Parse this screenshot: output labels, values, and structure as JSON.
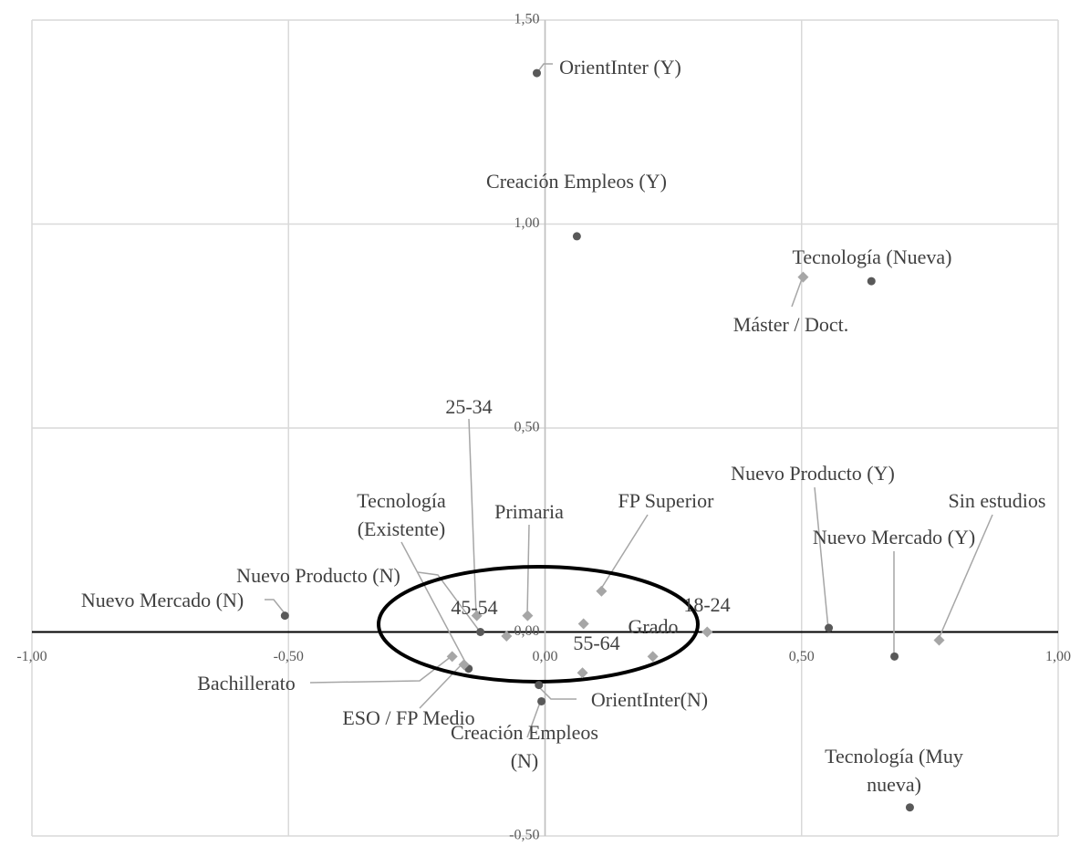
{
  "chart_data": {
    "type": "scatter",
    "xlim": [
      -1,
      1
    ],
    "xticks": [
      {
        "value": -1,
        "label": "-1,00"
      },
      {
        "value": -0.5,
        "label": "-0,50"
      },
      {
        "value": 0,
        "label": "0,00"
      },
      {
        "value": 0.5,
        "label": "0,50"
      },
      {
        "value": 1,
        "label": "1,00"
      }
    ],
    "ylim": [
      -0.5,
      1.5
    ],
    "yticks": [
      {
        "value": -0.5,
        "label": "-0,50"
      },
      {
        "value": 0,
        "label": "0,00"
      },
      {
        "value": 0.5,
        "label": "0,50"
      },
      {
        "value": 1,
        "label": "1,00"
      },
      {
        "value": 1.5,
        "label": "1,50"
      }
    ],
    "grid": true,
    "series": [
      {
        "color": "#595959",
        "marker": "circle",
        "labels": [
          "OrientInter (Y)",
          "Creación Empleos (Y)",
          "Tecnología (Nueva)",
          "Nuevo Producto (Y)",
          "Nuevo Mercado (Y)",
          "Tecnología (Muy nueva)",
          "Nuevo Mercado (N)",
          "Nuevo Producto (N)",
          "Tecnología (Existente)",
          "OrientInter(N)",
          "Creación Empleos (N)"
        ],
        "x": [
          -0.016,
          0.062,
          0.636,
          0.553,
          0.681,
          0.711,
          -0.507,
          -0.126,
          -0.149,
          -0.012,
          -0.007
        ],
        "values": [
          1.37,
          0.97,
          0.86,
          0.01,
          -0.06,
          -0.43,
          0.04,
          0.0,
          -0.09,
          -0.13,
          -0.17
        ]
      },
      {
        "color": "#a6a6a6",
        "marker": "diamond",
        "labels": [
          "Máster / Doct.",
          "Sin estudios",
          "18-24",
          "Grado",
          "FP Superior",
          "25-34",
          "Primaria",
          "45-54",
          null,
          "55-64",
          "Bachillerato",
          "ESO / FP Medio"
        ],
        "x": [
          0.503,
          0.768,
          0.316,
          0.21,
          0.11,
          -0.133,
          -0.034,
          -0.075,
          0.075,
          0.073,
          -0.181,
          -0.158
        ],
        "values": [
          0.87,
          -0.02,
          0.0,
          -0.06,
          0.1,
          0.04,
          0.04,
          -0.01,
          0.02,
          -0.1,
          -0.06,
          -0.08
        ]
      }
    ]
  }
}
